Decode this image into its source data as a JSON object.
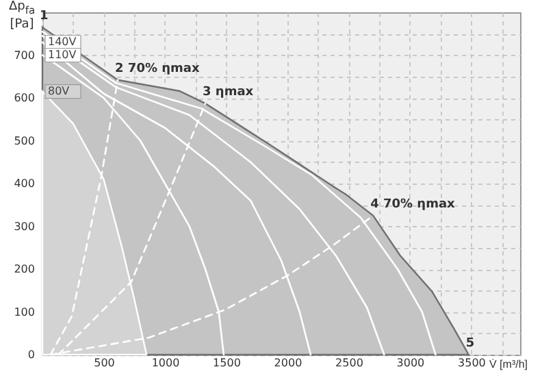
{
  "chart_data": {
    "type": "line",
    "xlabel": "V̇ [m³/h]",
    "ylabel": "Δp$_{fa}$ [Pa]",
    "xlim": [
      0,
      3900
    ],
    "ylim": [
      0,
      800
    ],
    "xticks": [
      {
        "value": 0,
        "label": null
      },
      {
        "value": 250,
        "label": null
      },
      500,
      {
        "value": 750,
        "label": null
      },
      1000,
      {
        "value": 1250,
        "label": null
      },
      1500,
      {
        "value": 1750,
        "label": null
      },
      2000,
      {
        "value": 2250,
        "label": null
      },
      2500,
      {
        "value": 2750,
        "label": null
      },
      3000,
      {
        "value": 3250,
        "label": null
      },
      3500,
      {
        "value": 3750,
        "label": null
      }
    ],
    "yticks": [
      0,
      {
        "value": 50,
        "label": null
      },
      100,
      {
        "value": 150,
        "label": null
      },
      200,
      {
        "value": 250,
        "label": null
      },
      300,
      {
        "value": 350,
        "label": null
      },
      400,
      {
        "value": 450,
        "label": null
      },
      500,
      {
        "value": 550,
        "label": null
      },
      600,
      {
        "value": 650,
        "label": null
      },
      700,
      {
        "value": 750,
        "label": null
      }
    ],
    "grid": true,
    "series": [
      {
        "type": "area",
        "color": "#c4c4c4",
        "x": [
          0,
          300,
          615,
          1120,
          1330,
          1560,
          1860,
          2100,
          2370,
          2480,
          2700,
          2920,
          3180,
          3360,
          3480
        ],
        "values": [
          765,
          705,
          642,
          616,
          587,
          545,
          490,
          445,
          394,
          374,
          325,
          232,
          148,
          61,
          0
        ]
      },
      {
        "type": "area",
        "name": "80V",
        "color": "#d3d3d3",
        "x": [
          0,
          250,
          500,
          650,
          750,
          850
        ],
        "values": [
          615,
          540,
          410,
          250,
          130,
          0
        ]
      },
      {
        "type": "line",
        "color": "#ffffff",
        "x": [
          0,
          600,
          1300,
          1800,
          2200,
          2600,
          2900,
          3100,
          3210
        ],
        "values": [
          755,
          635,
          575,
          490,
          420,
          320,
          200,
          100,
          0
        ]
      },
      {
        "type": "line",
        "color": "#ffffff",
        "x": [
          0,
          600,
          1200,
          1700,
          2100,
          2400,
          2650,
          2790
        ],
        "values": [
          745,
          625,
          560,
          450,
          340,
          230,
          110,
          0
        ]
      },
      {
        "type": "line",
        "name": "140V",
        "color": "#ffffff",
        "x": [
          0,
          500,
          1000,
          1400,
          1700,
          1950,
          2100,
          2190
        ],
        "values": [
          730,
          610,
          530,
          440,
          360,
          220,
          100,
          0
        ]
      },
      {
        "type": "line",
        "name": "110V",
        "color": "#ffffff",
        "x": [
          0,
          130,
          500,
          800,
          1030,
          1200,
          1330,
          1440,
          1480
        ],
        "values": [
          700,
          675,
          600,
          500,
          385,
          300,
          200,
          100,
          0
        ]
      },
      {
        "type": "line",
        "line_style": "dashed",
        "color": "#ffffff",
        "x": [
          66,
          240,
          480,
          615
        ],
        "values": [
          0,
          90,
          415,
          642
        ]
      },
      {
        "type": "line",
        "line_style": "dashed",
        "color": "#ffffff",
        "x": [
          130,
          725,
          1070,
          1330
        ],
        "values": [
          0,
          170,
          405,
          587
        ]
      },
      {
        "type": "line",
        "line_style": "dashed",
        "color": "#ffffff",
        "x": [
          66,
          870,
          1490,
          2000,
          2370,
          2700
        ],
        "values": [
          0,
          40,
          105,
          185,
          255,
          325
        ]
      }
    ],
    "annotations": [
      {
        "text": "1",
        "x": 0,
        "y": 765
      },
      {
        "text": "2 70% ηmax",
        "x": 615,
        "y": 642
      },
      {
        "text": "3 ηmax",
        "x": 1330,
        "y": 587
      },
      {
        "text": "4 70% ηmax",
        "x": 2700,
        "y": 325
      },
      {
        "text": "5",
        "x": 3480,
        "y": 0
      }
    ]
  }
}
